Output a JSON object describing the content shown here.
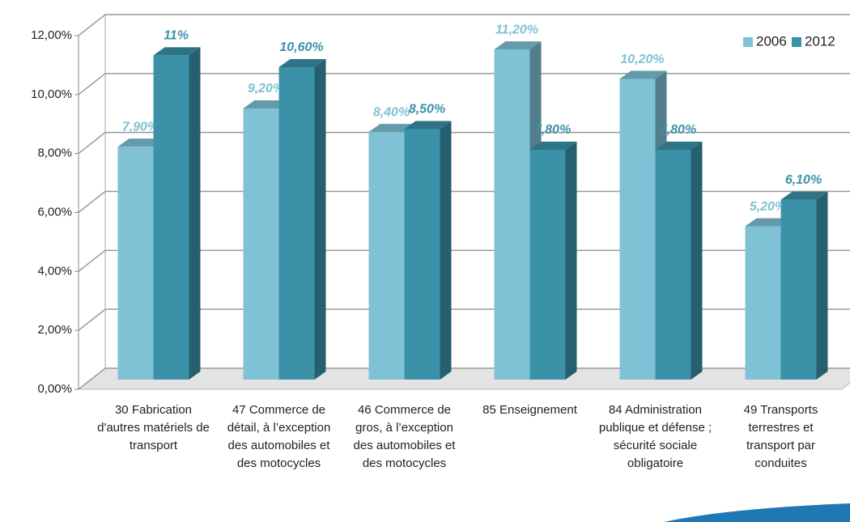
{
  "chart_data": {
    "type": "bar",
    "categories": [
      "30 Fabrication d'autres matériels de transport",
      "47 Commerce de détail, à l’exception des automobiles et des motocycles",
      "46 Commerce de gros, à l’exception des automobiles et des motocycles",
      "85 Enseignement",
      "84 Administration publique et défense ; sécurité sociale obligatoire",
      "49 Transports terrestres et transport par conduites"
    ],
    "series": [
      {
        "name": "2006",
        "color": "#7fc1d5",
        "values": [
          7.9,
          9.2,
          8.4,
          11.2,
          10.2,
          5.2
        ],
        "value_labels": [
          "7,90%",
          "9,20%",
          "8,40%",
          "11,20%",
          "10,20%",
          "5,20%"
        ]
      },
      {
        "name": "2012",
        "color": "#3b92a8",
        "values": [
          11,
          10.6,
          8.5,
          7.8,
          7.8,
          6.1
        ],
        "value_labels": [
          "11%",
          "10,60%",
          "8,50%",
          "7,80%",
          "7,80%",
          "6,10%"
        ]
      }
    ],
    "ylim": [
      0,
      12
    ],
    "yticks": [
      {
        "value": 0,
        "label": "0,00%"
      },
      {
        "value": 2,
        "label": "2,00%"
      },
      {
        "value": 4,
        "label": "4,00%"
      },
      {
        "value": 6,
        "label": "6,00%"
      },
      {
        "value": 8,
        "label": "8,00%"
      },
      {
        "value": 10,
        "label": "10,00%"
      },
      {
        "value": 12,
        "label": "12,00%"
      }
    ],
    "grid": true,
    "legend": "top-right"
  }
}
